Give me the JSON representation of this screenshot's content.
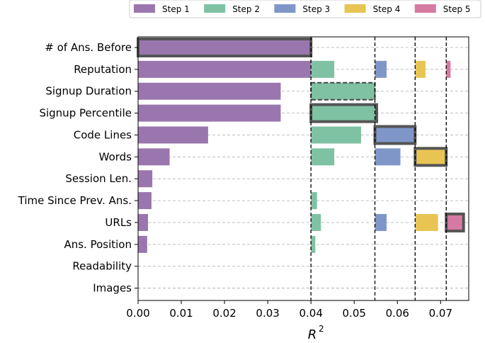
{
  "chart_data": {
    "type": "bar",
    "orientation": "horizontal",
    "stacked_steps": true,
    "xlabel": "R",
    "xlabel_superscript": "2",
    "ylabel": "",
    "xlim": [
      0,
      0.0765
    ],
    "xticks": [
      "0.00",
      "0.01",
      "0.02",
      "0.03",
      "0.04",
      "0.05",
      "0.06",
      "0.07"
    ],
    "xtick_values": [
      0,
      0.01,
      0.02,
      0.03,
      0.04,
      0.05,
      0.06,
      0.07
    ],
    "grid": "horizontal dashed",
    "legend_position": "top-right",
    "categories": [
      "# of Ans. Before",
      "Reputation",
      "Signup Duration",
      "Signup Percentile",
      "Code Lines",
      "Words",
      "Session Len.",
      "Time Since Prev. Ans.",
      "URLs",
      "Ans. Position",
      "Readability",
      "Images"
    ],
    "step_offsets": [
      0,
      0.04,
      0.0548,
      0.0641,
      0.0713
    ],
    "step_cutoff_lines": [
      0.04,
      0.0548,
      0.0641,
      0.0713
    ],
    "series": [
      {
        "name": "Step 1",
        "color": "#9a76ae",
        "values": [
          0.04,
          0.04,
          0.033,
          0.033,
          0.0162,
          0.0073,
          0.0033,
          0.0031,
          0.0023,
          0.0021,
          0,
          0
        ],
        "selected": "# of Ans. Before",
        "selected_style": "solid"
      },
      {
        "name": "Step 2",
        "color": "#7fc2a3",
        "values": [
          null,
          0.0054,
          0.0148,
          0.0152,
          0.0116,
          0.0054,
          null,
          0.0014,
          0.0023,
          0.001,
          null,
          null
        ],
        "selected": "Signup Percentile",
        "selected_style": "solid",
        "also_outlined": "Signup Duration",
        "also_outlined_style": "dashed"
      },
      {
        "name": "Step 3",
        "color": "#7f97c8",
        "values": [
          null,
          0.0027,
          null,
          null,
          0.0093,
          0.0059,
          null,
          null,
          0.0027,
          null,
          null,
          null
        ],
        "selected": "Code Lines",
        "selected_style": "solid"
      },
      {
        "name": "Step 4",
        "color": "#e8c552",
        "values": [
          null,
          0.0024,
          null,
          null,
          null,
          0.0072,
          null,
          null,
          0.0053,
          null,
          null,
          null
        ],
        "selected": "Words",
        "selected_style": "solid"
      },
      {
        "name": "Step 5",
        "color": "#d77aa3",
        "values": [
          null,
          0.001,
          null,
          null,
          null,
          null,
          null,
          null,
          0.004,
          null,
          null,
          null
        ],
        "selected": "URLs",
        "selected_style": "solid"
      }
    ]
  }
}
